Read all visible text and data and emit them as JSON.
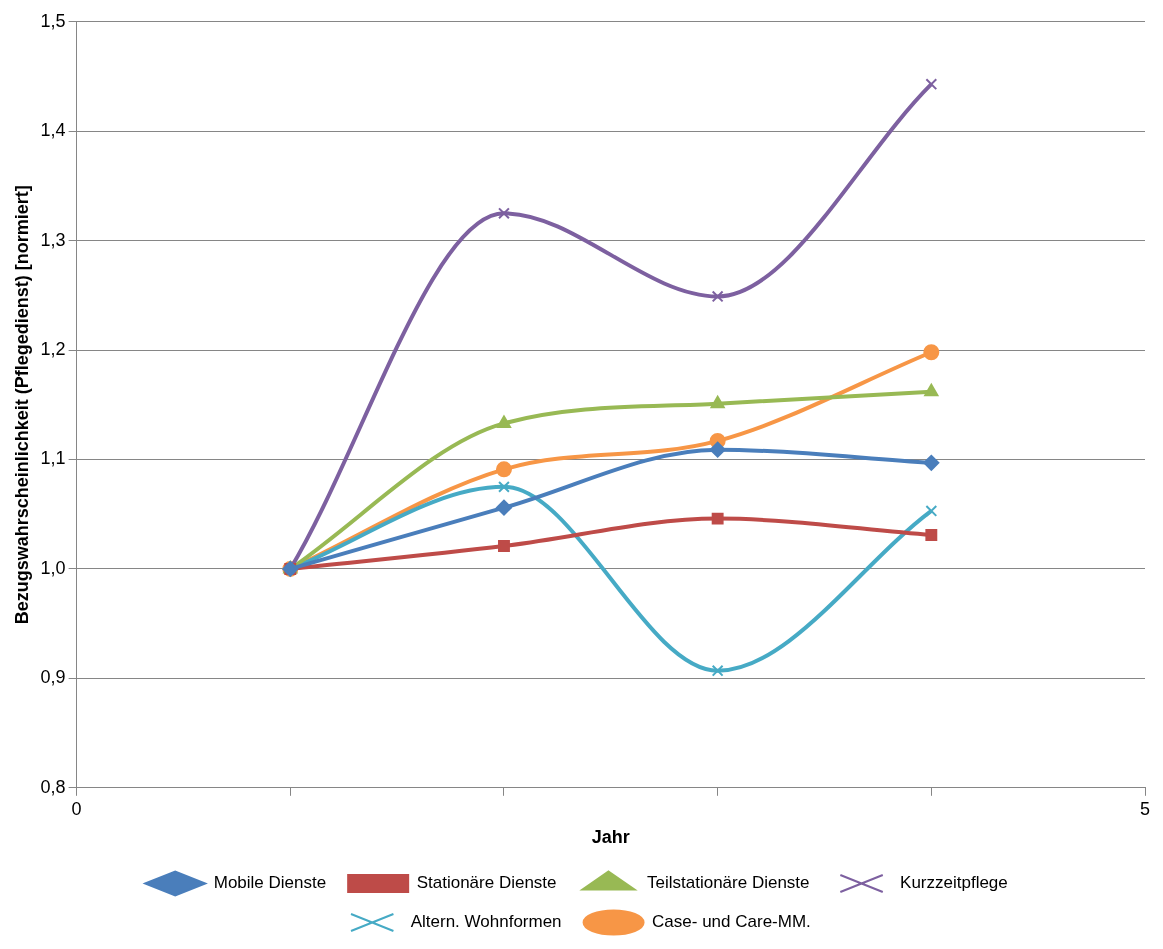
{
  "chart_data": {
    "type": "line",
    "xlabel": "Jahr",
    "ylabel": "Bezugswahrscheinlichkeit (Pflegedienst) [normiert]",
    "xlim": [
      0,
      5
    ],
    "xticks": [
      0,
      {
        "value": 1,
        "label": null
      },
      {
        "value": 2,
        "label": null
      },
      {
        "value": 3,
        "label": null
      },
      {
        "value": 4,
        "label": null
      },
      5
    ],
    "ylim": [
      0.8,
      1.5
    ],
    "yticks": [
      {
        "value": 0.8,
        "label": "0,8"
      },
      {
        "value": 0.9,
        "label": "0,9"
      },
      {
        "value": 1.0,
        "label": "1,0"
      },
      {
        "value": 1.1,
        "label": "1,1"
      },
      {
        "value": 1.2,
        "label": "1,2"
      },
      {
        "value": 1.3,
        "label": "1,3"
      },
      {
        "value": 1.4,
        "label": "1,4"
      },
      {
        "value": 1.5,
        "label": "1,5"
      }
    ],
    "grid": "y",
    "legend": "bottom",
    "x": [
      1,
      2,
      3,
      4
    ],
    "series": [
      {
        "name": "Mobile Dienste",
        "color": "#4a7ebb",
        "marker": "diamond",
        "values": [
          1.0,
          1.056,
          1.109,
          1.097
        ]
      },
      {
        "name": "Stationäre Dienste",
        "color": "#be4b48",
        "marker": "square",
        "values": [
          1.0,
          1.021,
          1.046,
          1.031
        ]
      },
      {
        "name": "Teilstationäre Dienste",
        "color": "#98b954",
        "marker": "triangle",
        "values": [
          1.0,
          1.133,
          1.151,
          1.162
        ]
      },
      {
        "name": "Kurzzeitpflege",
        "color": "#7d60a0",
        "marker": "cross",
        "values": [
          1.0,
          1.325,
          1.249,
          1.443
        ]
      },
      {
        "name": "Altern. Wohnformen",
        "color": "#46aac5",
        "marker": "cross",
        "values": [
          1.0,
          1.075,
          0.907,
          1.053
        ]
      },
      {
        "name": "Case- und Care-MM.",
        "color": "#f79646",
        "marker": "circle",
        "values": [
          1.0,
          1.091,
          1.117,
          1.198
        ]
      }
    ]
  }
}
